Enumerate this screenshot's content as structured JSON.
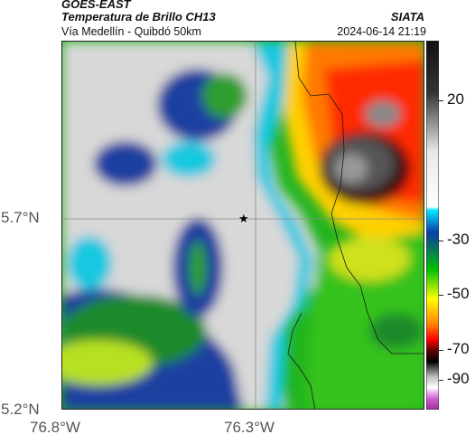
{
  "header": {
    "satellite": "GOES-EAST",
    "product": "Temperatura de Brillo CH13",
    "route": "Vía Medellín - Quibdó 50km",
    "organization": "SIATA",
    "datetime": "2024-06-14 21:19"
  },
  "map": {
    "lat_ticks": [
      "5.7°N",
      "5.2°N"
    ],
    "lon_ticks": [
      "76.8°W",
      "76.3°W"
    ],
    "marker": "star-marker"
  },
  "colorbar": {
    "ticks": [
      "20",
      "-30",
      "-50",
      "-70",
      "-90"
    ],
    "colors": [
      "#000000",
      "#ffffff",
      "#ff8c00",
      "#ffff00",
      "#00ff00",
      "#0000ff",
      "#00ffff",
      "#d070d0"
    ]
  }
}
